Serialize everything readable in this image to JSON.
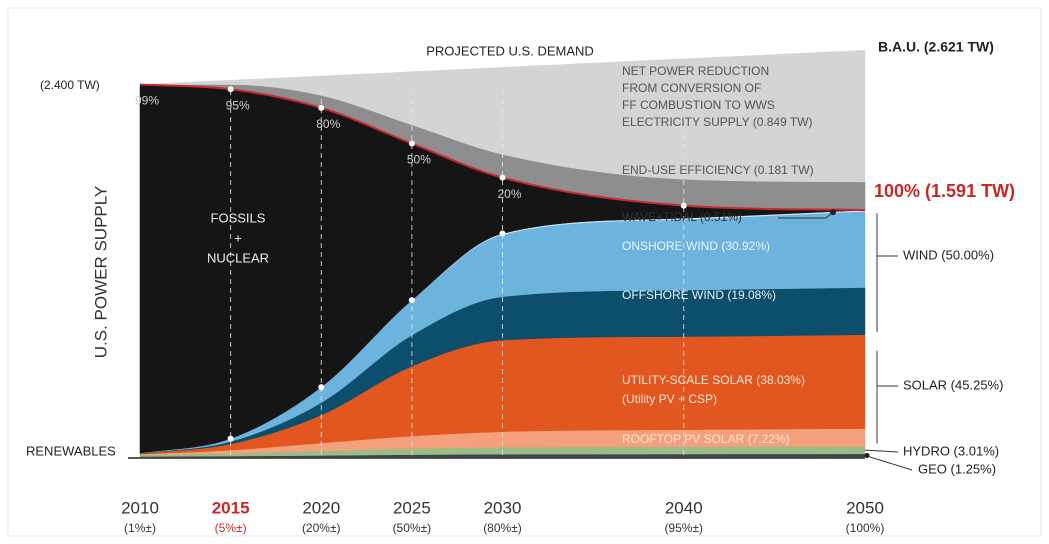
{
  "chart_data": {
    "type": "stacked-area",
    "title": "PROJECTED U.S. DEMAND",
    "y_label": "U.S. POWER SUPPLY",
    "start_label": "(2.400 TW)",
    "bau_label": "B.A.U. (2.621 TW)",
    "target_label": "100% (1.591 TW)",
    "renewables_label": "RENEWABLES",
    "wind_label": "WIND (50.00%)",
    "solar_label": "SOLAR (45.25%)",
    "x": [
      2010,
      2015,
      2020,
      2025,
      2030,
      2040,
      2050
    ],
    "xlim": [
      2010,
      2050
    ],
    "xticks": [
      2010,
      2015,
      2020,
      2025,
      2030,
      2040,
      2050
    ],
    "xtick_sublabels": [
      "(1%±)",
      "(5%±)",
      "(20%±)",
      "(50%±)",
      "(80%±)",
      "(95%±)",
      "(100%)"
    ],
    "xtick_colors": [
      "#333333",
      "#c62828",
      "#333333",
      "#333333",
      "#333333",
      "#333333",
      "#333333"
    ],
    "ylim": [
      0,
      2.7
    ],
    "fossil_share_labels": [
      "99%",
      "95%",
      "80%",
      "50%",
      "20%",
      null,
      null
    ],
    "supply_line_color": "#c8282e",
    "target_color": "#c62828",
    "series": [
      {
        "label_lines": [
          "GEO (1.25%)"
        ],
        "color": "#34474a",
        "values": [
          0.003,
          0.006,
          0.01,
          0.015,
          0.018,
          0.019,
          0.02
        ]
      },
      {
        "label_lines": [
          "HYDRO (3.01%)"
        ],
        "color": "#9dbb86",
        "values": [
          0.01,
          0.018,
          0.03,
          0.04,
          0.045,
          0.047,
          0.048
        ]
      },
      {
        "label_lines": [
          "ROOFTOP PV SOLAR (7.22%)"
        ],
        "color": "#f4a07c",
        "values": [
          0.005,
          0.02,
          0.05,
          0.08,
          0.1,
          0.11,
          0.115
        ]
      },
      {
        "label_lines": [
          "UTILITY-SCALE SOLAR (38.03%)",
          "(Utility PV + CSP)"
        ],
        "color": "#e2571f",
        "values": [
          0.004,
          0.04,
          0.18,
          0.45,
          0.59,
          0.6,
          0.605
        ]
      },
      {
        "label_lines": [
          "OFFSHORE WIND (19.08%)"
        ],
        "color": "#0d4e6c",
        "values": [
          0.001,
          0.016,
          0.08,
          0.2,
          0.28,
          0.3,
          0.304
        ]
      },
      {
        "label_lines": [
          "ONSHORE WIND (30.92%)"
        ],
        "color": "#6cb4de",
        "values": [
          0.001,
          0.018,
          0.099,
          0.224,
          0.4,
          0.455,
          0.491
        ]
      },
      {
        "label_lines": [
          "WAVE+TIDAL (0.51%)"
        ],
        "color": "#c9e5f5",
        "values": [
          0,
          0.0005,
          0.001,
          0.001,
          0.007,
          0.008,
          0.008
        ]
      },
      {
        "label_lines": [
          "FOSSILS",
          "+",
          "NUCLEAR"
        ],
        "color": "#151515",
        "values": [
          2.376,
          2.2515,
          1.8,
          1.01,
          0.36,
          0.081,
          0
        ]
      },
      {
        "label_lines": [
          "END-USE EFFICIENCY (0.181 TW)"
        ],
        "color": "#8e8e8e",
        "values": [
          0,
          0.03,
          0.08,
          0.12,
          0.15,
          0.17,
          0.181
        ]
      },
      {
        "label_lines": [
          "NET POWER REDUCTION",
          "FROM CONVERSION OF",
          "FF COMBUSTION TO WWS",
          "ELECTRICITY SUPPLY (0.849 TW)"
        ],
        "color": "#d5d4d5",
        "values": [
          0,
          0.028,
          0.125,
          0.343,
          0.561,
          0.776,
          0.849
        ]
      }
    ]
  }
}
